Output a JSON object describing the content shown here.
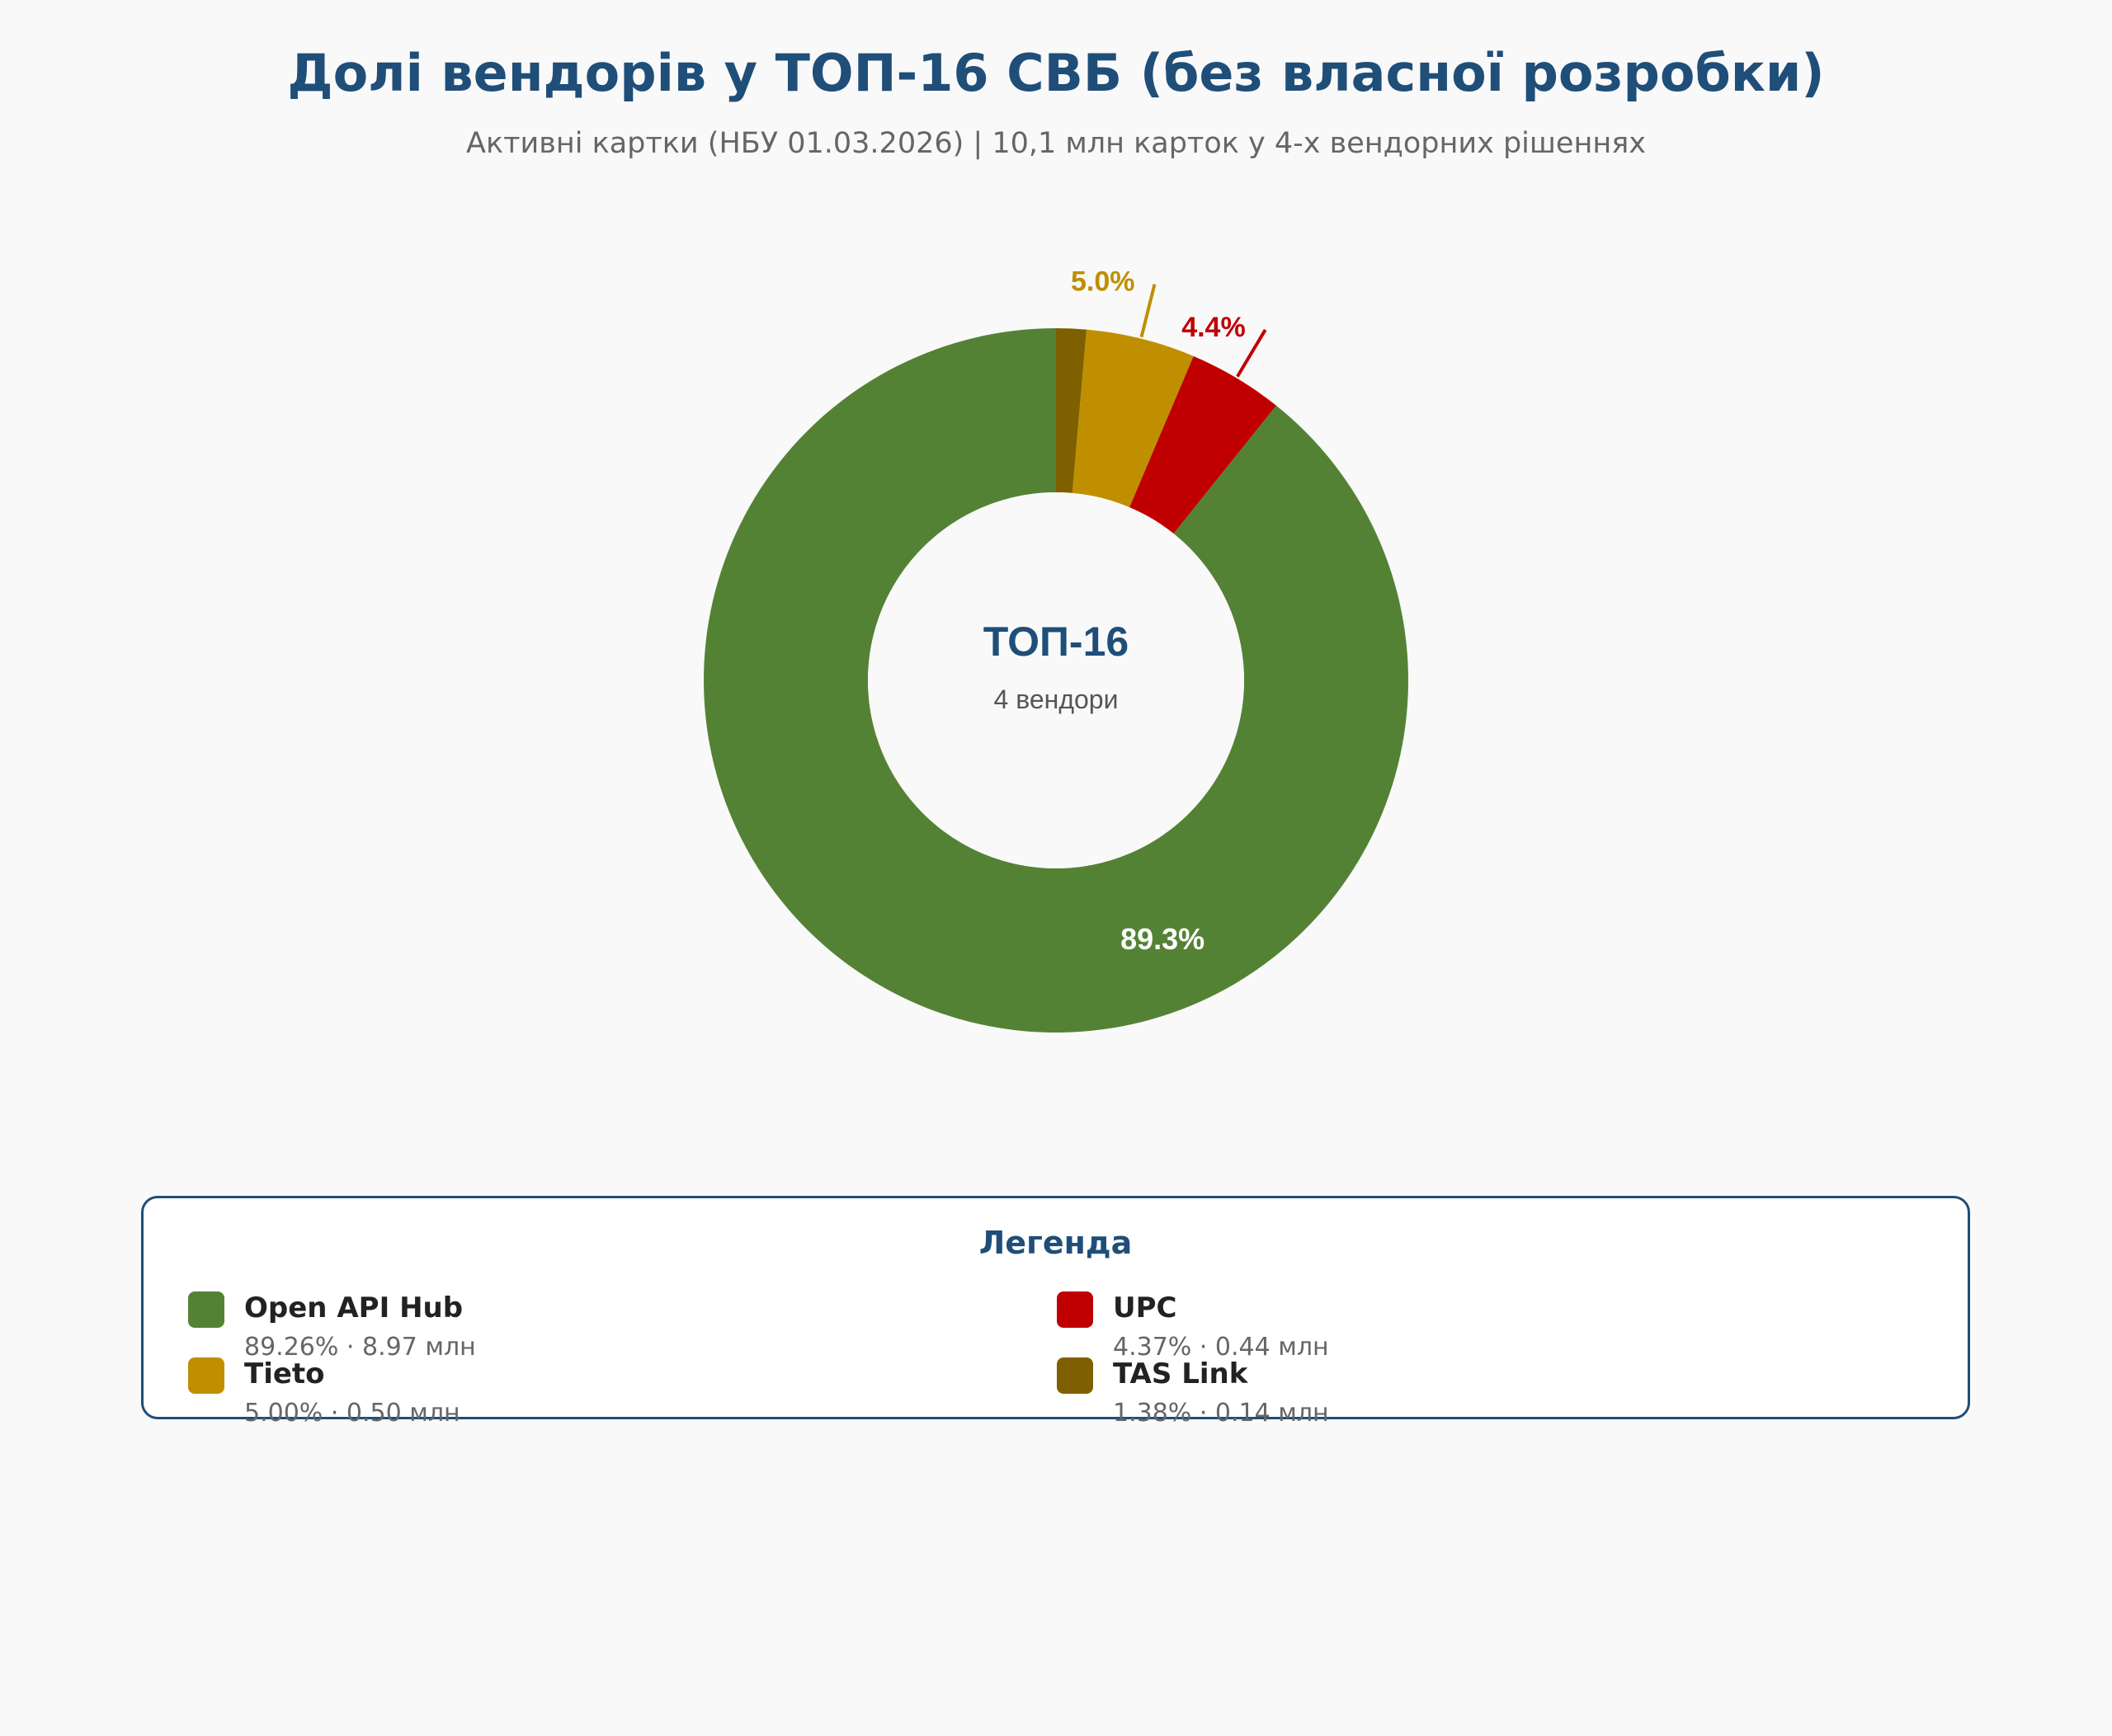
{
  "header": {
    "title": "Долі вендорів у ТОП-16 СВБ (без власної розробки)",
    "subtitle": "Активні картки (НБУ 01.03.2026) | 10,1 млн карток у 4-х вендорних рішеннях"
  },
  "chart_data": {
    "type": "pie",
    "donut": true,
    "center_title": "ТОП-16",
    "center_subtitle": "4 вендори",
    "slices": [
      {
        "name": "Open API Hub",
        "value": 89.26,
        "cards_mln": 8.97,
        "label": "89.3%",
        "color": "#548235",
        "label_mode": "inside",
        "label_color": "#ffffff"
      },
      {
        "name": "UPC",
        "value": 4.37,
        "cards_mln": 0.44,
        "label": "4.4%",
        "color": "#c00000",
        "label_mode": "outside",
        "label_color": "#c00000"
      },
      {
        "name": "Tieto",
        "value": 5.0,
        "cards_mln": 0.5,
        "label": "5.0%",
        "color": "#bf8f00",
        "label_mode": "outside",
        "label_color": "#bf8f00"
      },
      {
        "name": "TAS Link",
        "value": 1.38,
        "cards_mln": 0.14,
        "label": "",
        "color": "#7f6000",
        "label_mode": "none",
        "label_color": "#7f6000"
      }
    ],
    "legend_position": "bottom"
  },
  "legend": {
    "title": "Легенда",
    "items": [
      {
        "name": "Open API Hub",
        "detail": "89.26% · 8.97 млн",
        "color": "#548235"
      },
      {
        "name": "UPC",
        "detail": "4.37% · 0.44 млн",
        "color": "#c00000"
      },
      {
        "name": "Tieto",
        "detail": "5.00% · 0.50 млн",
        "color": "#bf8f00"
      },
      {
        "name": "TAS Link",
        "detail": "1.38% · 0.14 млн",
        "color": "#7f6000"
      }
    ]
  }
}
